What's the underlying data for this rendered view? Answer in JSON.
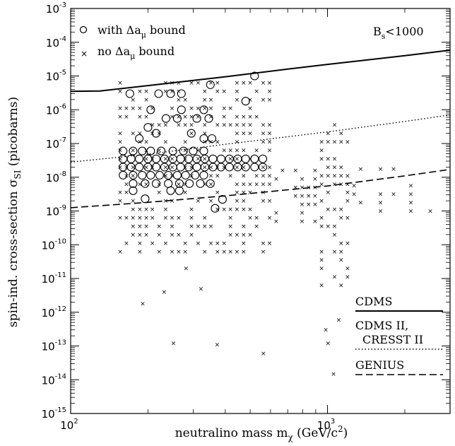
{
  "chart_data": {
    "type": "scatter",
    "xscale": "log",
    "yscale": "log",
    "xlim": [
      100,
      3000
    ],
    "ylim": [
      1e-15,
      0.001
    ],
    "x_ticks": [
      {
        "value": 100,
        "base": "10",
        "exp": "2"
      },
      {
        "value": 1000,
        "base": "10",
        "exp": "3"
      }
    ],
    "y_ticks": [
      {
        "value": 1e-15,
        "base": "10",
        "exp": "-15"
      },
      {
        "value": 1e-14,
        "base": "10",
        "exp": "-14"
      },
      {
        "value": 1e-13,
        "base": "10",
        "exp": "-13"
      },
      {
        "value": 1e-12,
        "base": "10",
        "exp": "-12"
      },
      {
        "value": 1e-11,
        "base": "10",
        "exp": "-11"
      },
      {
        "value": 1e-10,
        "base": "10",
        "exp": "-10"
      },
      {
        "value": 1e-09,
        "base": "10",
        "exp": "-9"
      },
      {
        "value": 1e-08,
        "base": "10",
        "exp": "-8"
      },
      {
        "value": 1e-07,
        "base": "10",
        "exp": "-7"
      },
      {
        "value": 1e-06,
        "base": "10",
        "exp": "-6"
      },
      {
        "value": 1e-05,
        "base": "10",
        "exp": "-5"
      },
      {
        "value": 0.0001,
        "base": "10",
        "exp": "-4"
      },
      {
        "value": 0.001,
        "base": "10",
        "exp": "-3"
      }
    ],
    "xlabel": {
      "main": "neutralino mass m",
      "sub": "χ",
      "units": " (GeV/c",
      "units_sup": "2",
      "units_end": ")"
    },
    "ylabel": {
      "main": "spin-ind. cross-section σ",
      "sub": "SI",
      "units": " (picobarns)"
    },
    "legend": {
      "placement": "top-left",
      "circle_label": {
        "main": "with Δa",
        "sub": "μ",
        "end": " bound"
      },
      "cross_label": {
        "main": "no Δa",
        "sub": "μ",
        "end": " bound"
      }
    },
    "annotation": {
      "main": "B",
      "sub": "s",
      "end": "<1000"
    },
    "bound_curves": [
      {
        "name": "CDMS",
        "style": "solid",
        "points": [
          [
            100,
            3.5e-06
          ],
          [
            130,
            3.6e-06
          ],
          [
            200,
            5.2e-06
          ],
          [
            400,
            9.5e-06
          ],
          [
            700,
            1.6e-05
          ],
          [
            1000,
            2.2e-05
          ],
          [
            2000,
            4e-05
          ],
          [
            3000,
            5.8e-05
          ]
        ]
      },
      {
        "name": "CDMS II,",
        "name2": "CRESST II",
        "style": "dotted",
        "points": [
          [
            100,
            2.8e-08
          ],
          [
            200,
            4.8e-08
          ],
          [
            400,
            9.5e-08
          ],
          [
            1000,
            2.2e-07
          ],
          [
            2000,
            4.5e-07
          ],
          [
            3000,
            7e-07
          ]
        ]
      },
      {
        "name": "GENIUS",
        "style": "dashed",
        "points": [
          [
            100,
            1.25e-09
          ],
          [
            200,
            1.8e-09
          ],
          [
            400,
            2.8e-09
          ],
          [
            1000,
            5.5e-09
          ],
          [
            2000,
            1.1e-08
          ],
          [
            3000,
            1.7e-08
          ]
        ]
      }
    ],
    "series": [
      {
        "name": "with Δaμ bound",
        "marker": "circle",
        "points": [
          [
            170,
            3e-06
          ],
          [
            220,
            3e-06
          ],
          [
            245,
            3e-06
          ],
          [
            270,
            3e-06
          ],
          [
            520,
            1e-05
          ],
          [
            350,
            5.5e-06
          ],
          [
            205,
            1e-06
          ],
          [
            270,
            1e-06
          ],
          [
            330,
            1e-06
          ],
          [
            200,
            3e-07
          ],
          [
            235,
            5.5e-07
          ],
          [
            260,
            5.5e-07
          ],
          [
            310,
            5.5e-07
          ],
          [
            345,
            5.5e-07
          ],
          [
            480,
            1.8e-06
          ],
          [
            215,
            2e-07
          ],
          [
            295,
            2e-07
          ],
          [
            185,
            1.4e-07
          ],
          [
            330,
            1.4e-07
          ],
          [
            355,
            1.4e-07
          ],
          [
            160,
            6e-08
          ],
          [
            175,
            6e-08
          ],
          [
            190,
            6e-08
          ],
          [
            205,
            6e-08
          ],
          [
            225,
            6e-08
          ],
          [
            250,
            6e-08
          ],
          [
            275,
            6e-08
          ],
          [
            300,
            6e-08
          ],
          [
            330,
            6e-08
          ],
          [
            160,
            3.5e-08
          ],
          [
            172,
            3.5e-08
          ],
          [
            185,
            3.5e-08
          ],
          [
            200,
            3.5e-08
          ],
          [
            215,
            3.5e-08
          ],
          [
            232,
            3.5e-08
          ],
          [
            250,
            3.5e-08
          ],
          [
            268,
            3.5e-08
          ],
          [
            288,
            3.5e-08
          ],
          [
            310,
            3.5e-08
          ],
          [
            333,
            3.5e-08
          ],
          [
            358,
            3.5e-08
          ],
          [
            385,
            3.5e-08
          ],
          [
            415,
            3.5e-08
          ],
          [
            447,
            3.5e-08
          ],
          [
            480,
            3.5e-08
          ],
          [
            520,
            3.5e-08
          ],
          [
            560,
            3.5e-08
          ],
          [
            160,
            2e-08
          ],
          [
            172,
            2e-08
          ],
          [
            185,
            2e-08
          ],
          [
            200,
            2e-08
          ],
          [
            215,
            2e-08
          ],
          [
            232,
            2e-08
          ],
          [
            250,
            2e-08
          ],
          [
            268,
            2e-08
          ],
          [
            288,
            2e-08
          ],
          [
            310,
            2e-08
          ],
          [
            333,
            2e-08
          ],
          [
            358,
            2e-08
          ],
          [
            385,
            2e-08
          ],
          [
            415,
            2e-08
          ],
          [
            447,
            2e-08
          ],
          [
            480,
            2e-08
          ],
          [
            520,
            2e-08
          ],
          [
            560,
            2e-08
          ],
          [
            160,
            1.15e-08
          ],
          [
            175,
            1.15e-08
          ],
          [
            190,
            1.15e-08
          ],
          [
            205,
            1.15e-08
          ],
          [
            222,
            1.15e-08
          ],
          [
            240,
            1.15e-08
          ],
          [
            260,
            1.15e-08
          ],
          [
            280,
            1.15e-08
          ],
          [
            305,
            1.15e-08
          ],
          [
            330,
            1.15e-08
          ],
          [
            175,
            6.5e-09
          ],
          [
            195,
            6.5e-09
          ],
          [
            215,
            6.5e-09
          ],
          [
            240,
            6.5e-09
          ],
          [
            265,
            6.5e-09
          ],
          [
            290,
            6.5e-09
          ],
          [
            320,
            6.5e-09
          ],
          [
            350,
            6.5e-09
          ],
          [
            175,
            4e-09
          ],
          [
            245,
            4e-09
          ],
          [
            265,
            4e-09
          ],
          [
            195,
            2.3e-09
          ],
          [
            390,
            2.2e-09
          ],
          [
            365,
            1.2e-09
          ]
        ]
      },
      {
        "name": "no Δaμ bound",
        "marker": "cross",
        "points": []
      }
    ]
  },
  "bounds_legend": {
    "cdms": "CDMS",
    "cdms2_line1": "CDMS II,",
    "cdms2_line2": "CRESST II",
    "genius": "GENIUS"
  }
}
